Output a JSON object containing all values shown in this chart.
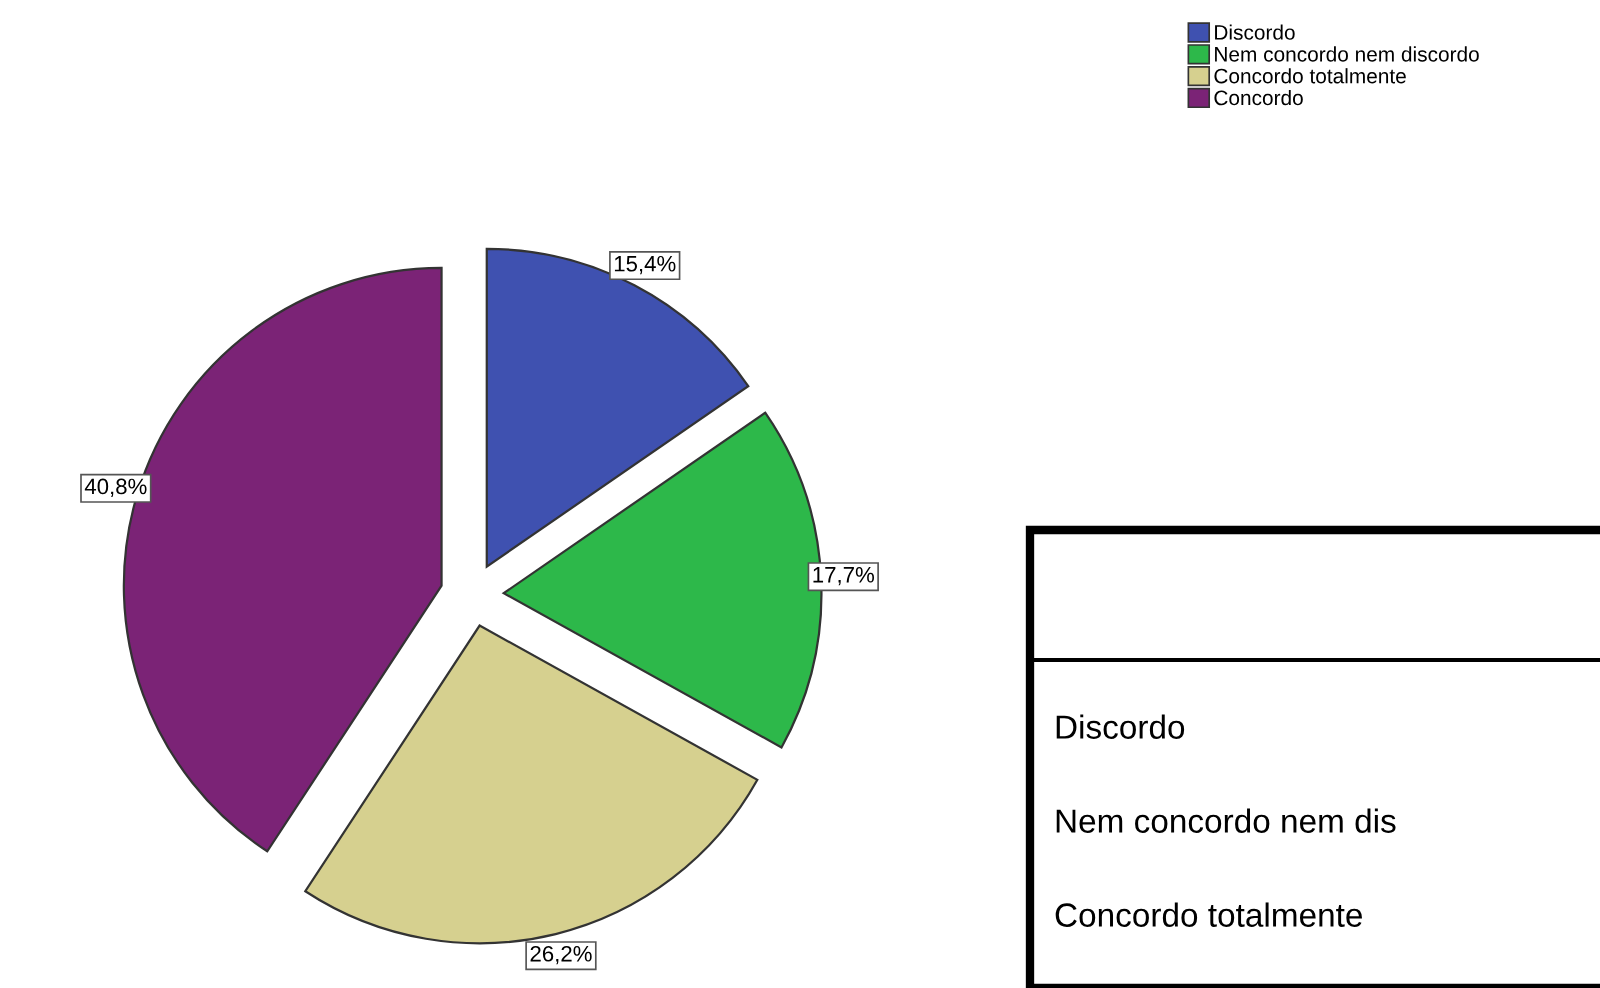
{
  "chart_data": {
    "type": "pie",
    "categories": [
      "Discordo",
      "Nem concordo nem discordo",
      "Concordo totalmente",
      "Concordo"
    ],
    "values": [
      15.4,
      17.7,
      26.2,
      40.8
    ],
    "colors": [
      "#3f51b0",
      "#2db84a",
      "#d6d08f",
      "#7b2376"
    ],
    "value_labels": [
      "15,4%",
      "17,7%",
      "26,2%",
      "40,8%"
    ],
    "legend": "top right",
    "annotations": [
      "Discordo",
      "Nem concordo nem dis",
      "Concordo totalmente"
    ]
  }
}
